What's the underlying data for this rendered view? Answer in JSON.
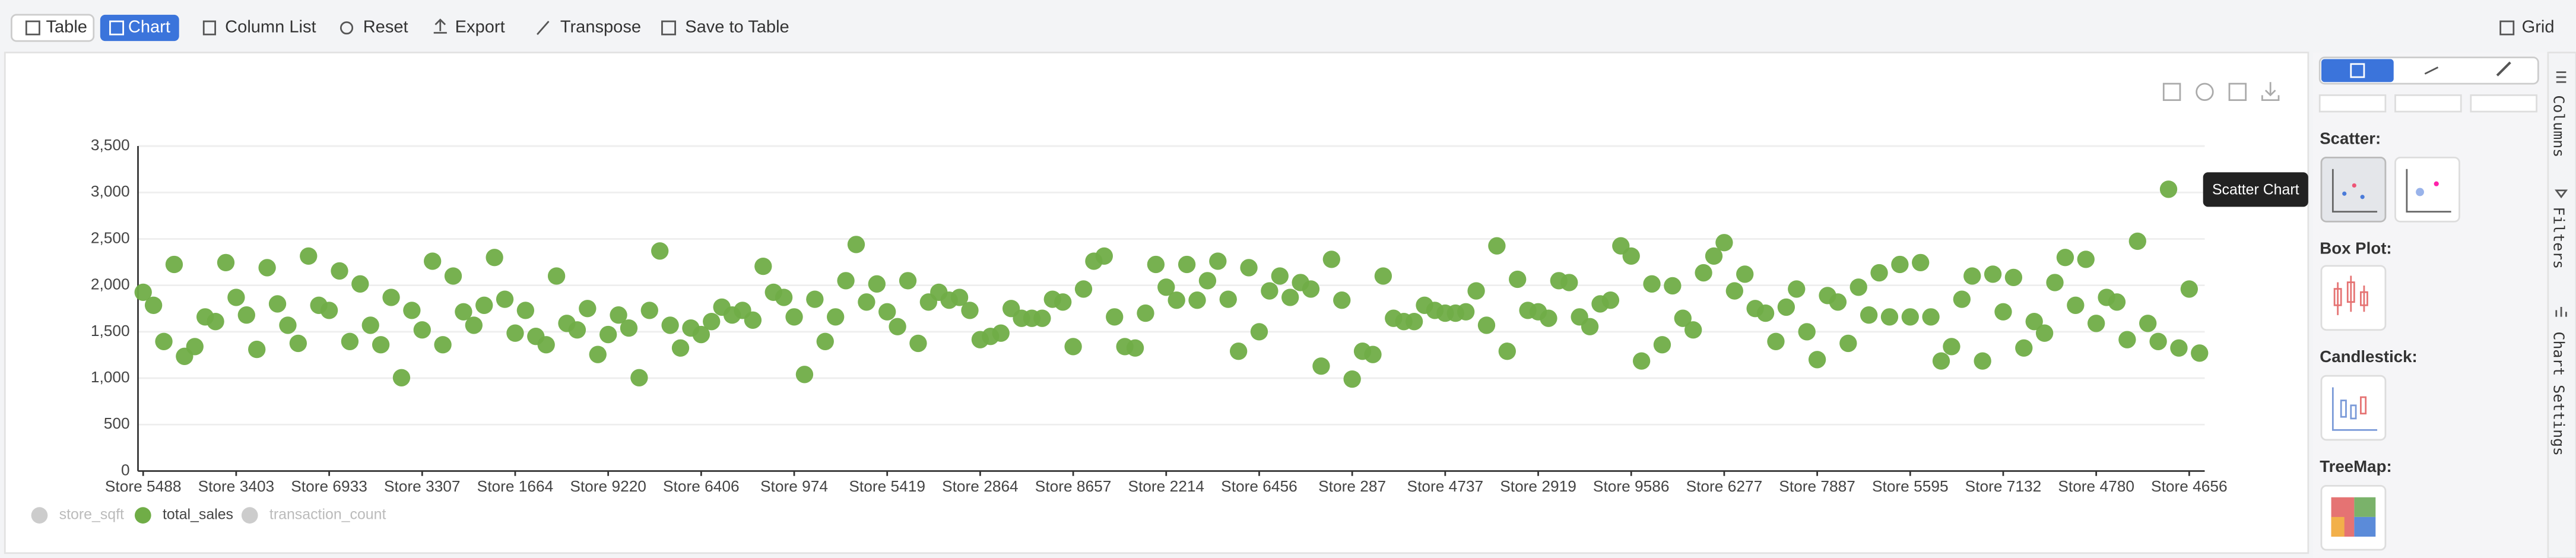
{
  "toolbar": {
    "buttons": [
      "Table",
      "Chart",
      "Column List",
      "Reset",
      "Export",
      "Transpose",
      "Save to Table"
    ],
    "right": "Grid"
  },
  "chart_data": {
    "type": "scatter",
    "categories": [
      "Store 5488",
      null,
      null,
      null,
      null,
      null,
      null,
      null,
      null,
      "Store 3403",
      null,
      null,
      null,
      null,
      null,
      null,
      null,
      null,
      "Store 6933",
      null,
      null,
      null,
      null,
      null,
      null,
      null,
      null,
      "Store 3307",
      null,
      null,
      null,
      null,
      null,
      null,
      null,
      null,
      "Store 1664",
      null,
      null,
      null,
      null,
      null,
      null,
      null,
      null,
      "Store 9220",
      null,
      null,
      null,
      null,
      null,
      null,
      null,
      null,
      "Store 6406",
      null,
      null,
      null,
      null,
      null,
      null,
      null,
      null,
      "Store 974",
      null,
      null,
      null,
      null,
      null,
      null,
      null,
      null,
      "Store 5419",
      null,
      null,
      null,
      null,
      null,
      null,
      null,
      null,
      "Store 2864",
      null,
      null,
      null,
      null,
      null,
      null,
      null,
      null,
      "Store 8657",
      null,
      null,
      null,
      null,
      null,
      null,
      null,
      null,
      "Store 2214",
      null,
      null,
      null,
      null,
      null,
      null,
      null,
      null,
      "Store 6456",
      null,
      null,
      null,
      null,
      null,
      null,
      null,
      null,
      "Store 287",
      null,
      null,
      null,
      null,
      null,
      null,
      null,
      null,
      "Store 4737",
      null,
      null,
      null,
      null,
      null,
      null,
      null,
      null,
      "Store 2919",
      null,
      null,
      null,
      null,
      null,
      null,
      null,
      null,
      "Store 9586",
      null,
      null,
      null,
      null,
      null,
      null,
      null,
      null,
      "Store 6277",
      null,
      null,
      null,
      null,
      null,
      null,
      null,
      null,
      "Store 7887",
      null,
      null,
      null,
      null,
      null,
      null,
      null,
      null,
      "Store 5595",
      null,
      null,
      null,
      null,
      null,
      null,
      null,
      null,
      "Store 7132",
      null,
      null,
      null,
      null,
      null,
      null,
      null,
      null,
      "Store 4780",
      null,
      null,
      null,
      null,
      null,
      null,
      null,
      null,
      "Store 4656",
      null
    ],
    "series": [
      {
        "name": "total_sales",
        "color": "#70ad47",
        "values": [
          1925,
          1785,
          1395,
          2225,
          1235,
          1340,
          1660,
          1610,
          2245,
          1870,
          1680,
          1310,
          2190,
          1800,
          1570,
          1375,
          2315,
          1785,
          1730,
          2155,
          1395,
          2015,
          1570,
          1360,
          1870,
          1005,
          1730,
          1520,
          2260,
          1360,
          2100,
          1715,
          1570,
          1785,
          2300,
          1850,
          1485,
          1730,
          1450,
          1360,
          2100,
          1590,
          1520,
          1750,
          1255,
          1470,
          1680,
          1540,
          1005,
          1730,
          2370,
          1570,
          1325,
          1540,
          1470,
          1610,
          1765,
          1680,
          1730,
          1625,
          2205,
          1925,
          1870,
          1660,
          1040,
          1850,
          1395,
          1660,
          2050,
          2440,
          1820,
          2015,
          1715,
          1555,
          2050,
          1375,
          1820,
          1925,
          1840,
          1870,
          1730,
          1415,
          1450,
          1485,
          1750,
          1645,
          1645,
          1645,
          1850,
          1820,
          1340,
          1960,
          2260,
          2315,
          1660,
          1340,
          1325,
          1700,
          2225,
          1980,
          1840,
          2225,
          1840,
          2050,
          2260,
          1850,
          1290,
          2190,
          1500,
          1940,
          2100,
          1870,
          2030,
          1960,
          1130,
          2280,
          1840,
          990,
          1290,
          1255,
          2100,
          1645,
          1610,
          1610,
          1785,
          1730,
          1700,
          1700,
          1715,
          1940,
          1570,
          2425,
          1290,
          2065,
          1730,
          1715,
          1645,
          2050,
          2030,
          1660,
          1555,
          1800,
          1840,
          2425,
          2315,
          1185,
          2015,
          1360,
          1995,
          1645,
          1520,
          2135,
          2315,
          2460,
          1940,
          2120,
          1750,
          1700,
          1395,
          1765,
          1960,
          1500,
          1200,
          1890,
          1820,
          1375,
          1980,
          1680,
          2135,
          1660,
          2225,
          1660,
          2245,
          1660,
          1185,
          1340,
          1850,
          2100,
          1185,
          2120,
          1715,
          2085,
          1325,
          1610,
          1485,
          2030,
          2300,
          1785,
          2280,
          1590,
          1870,
          1820,
          1415,
          2475,
          1590,
          1395,
          3035,
          1325,
          1960,
          1270
        ]
      }
    ],
    "legend": [
      {
        "name": "store_sqft",
        "color": "#cccccc"
      },
      {
        "name": "total_sales",
        "color": "#70ad47"
      },
      {
        "name": "transaction_count",
        "color": "#cccccc"
      }
    ],
    "ylim": [
      0,
      3500
    ],
    "yticks": [
      0,
      500,
      {
        "value": 1000,
        "label": "1,000"
      },
      {
        "value": 1500,
        "label": "1,500"
      },
      {
        "value": 2000,
        "label": "2,000"
      },
      {
        "value": 2500,
        "label": "2,500"
      },
      {
        "value": 3000,
        "label": "3,000"
      },
      {
        "value": 3500,
        "label": "3,500"
      }
    ],
    "grid": true
  },
  "sidebar": {
    "sections": [
      "Scatter:",
      "Box Plot:",
      "Candlestick:",
      "TreeMap:"
    ],
    "tooltip": "Scatter Chart",
    "tabs": [
      "Columns",
      "Filters",
      "Chart Settings"
    ]
  }
}
